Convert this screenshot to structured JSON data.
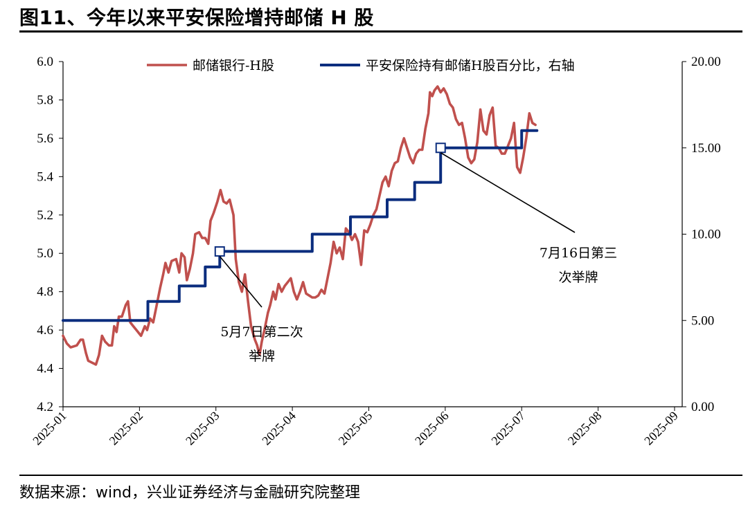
{
  "page": {
    "title": "图11、今年以来平安保险增持邮储 H 股",
    "source": "数据来源：wind，兴业证券经济与金融研究院整理"
  },
  "chart_data": {
    "type": "line",
    "title": "",
    "x": [
      "2025-01",
      "2025-02",
      "2025-03",
      "2025-04",
      "2025-05",
      "2025-06",
      "2025-07",
      "2025-08",
      "2025-09"
    ],
    "xlabel": "",
    "ylabel": "",
    "ylim": [
      4.2,
      6.0
    ],
    "yticks": [
      "4.2",
      "4.4",
      "4.6",
      "4.8",
      "5.0",
      "5.2",
      "5.4",
      "5.6",
      "5.8",
      "6.0"
    ],
    "y2lim": [
      0,
      20
    ],
    "y2ticks": [
      "0.00",
      "5.00",
      "10.00",
      "15.00",
      "20.00"
    ],
    "legend_position": "top",
    "series": [
      {
        "name": "邮储银行-H股",
        "axis": "left",
        "color": "#C0504D",
        "points": [
          [
            0.0,
            4.57
          ],
          [
            0.05,
            4.53
          ],
          [
            0.1,
            4.51
          ],
          [
            0.18,
            4.52
          ],
          [
            0.23,
            4.55
          ],
          [
            0.26,
            4.55
          ],
          [
            0.3,
            4.48
          ],
          [
            0.33,
            4.44
          ],
          [
            0.38,
            4.43
          ],
          [
            0.43,
            4.42
          ],
          [
            0.47,
            4.47
          ],
          [
            0.51,
            4.57
          ],
          [
            0.55,
            4.54
          ],
          [
            0.6,
            4.52
          ],
          [
            0.64,
            4.52
          ],
          [
            0.67,
            4.62
          ],
          [
            0.7,
            4.59
          ],
          [
            0.73,
            4.67
          ],
          [
            0.77,
            4.67
          ],
          [
            0.82,
            4.73
          ],
          [
            0.85,
            4.75
          ],
          [
            0.88,
            4.64
          ],
          [
            0.92,
            4.62
          ],
          [
            0.96,
            4.6
          ],
          [
            1.02,
            4.57
          ],
          [
            1.07,
            4.62
          ],
          [
            1.1,
            4.6
          ],
          [
            1.14,
            4.66
          ],
          [
            1.18,
            4.64
          ],
          [
            1.22,
            4.72
          ],
          [
            1.27,
            4.82
          ],
          [
            1.31,
            4.89
          ],
          [
            1.34,
            4.95
          ],
          [
            1.38,
            4.9
          ],
          [
            1.42,
            4.96
          ],
          [
            1.48,
            4.97
          ],
          [
            1.52,
            4.9
          ],
          [
            1.55,
            5.0
          ],
          [
            1.59,
            4.98
          ],
          [
            1.62,
            4.86
          ],
          [
            1.66,
            4.92
          ],
          [
            1.7,
            5.0
          ],
          [
            1.73,
            5.1
          ],
          [
            1.78,
            5.11
          ],
          [
            1.82,
            5.08
          ],
          [
            1.86,
            5.08
          ],
          [
            1.9,
            5.05
          ],
          [
            1.93,
            5.17
          ],
          [
            1.97,
            5.21
          ],
          [
            2.02,
            5.27
          ],
          [
            2.06,
            5.33
          ],
          [
            2.1,
            5.27
          ],
          [
            2.14,
            5.26
          ],
          [
            2.18,
            5.28
          ],
          [
            2.23,
            5.2
          ],
          [
            2.26,
            4.97
          ],
          [
            2.3,
            4.85
          ],
          [
            2.34,
            4.8
          ],
          [
            2.38,
            4.89
          ],
          [
            2.42,
            4.75
          ],
          [
            2.46,
            4.62
          ],
          [
            2.51,
            4.55
          ],
          [
            2.54,
            4.52
          ],
          [
            2.57,
            4.47
          ],
          [
            2.6,
            4.54
          ],
          [
            2.64,
            4.61
          ],
          [
            2.68,
            4.69
          ],
          [
            2.71,
            4.73
          ],
          [
            2.75,
            4.8
          ],
          [
            2.78,
            4.76
          ],
          [
            2.82,
            4.84
          ],
          [
            2.86,
            4.8
          ],
          [
            2.9,
            4.83
          ],
          [
            2.94,
            4.85
          ],
          [
            2.98,
            4.87
          ],
          [
            3.02,
            4.8
          ],
          [
            3.06,
            4.76
          ],
          [
            3.1,
            4.8
          ],
          [
            3.14,
            4.85
          ],
          [
            3.18,
            4.79
          ],
          [
            3.22,
            4.78
          ],
          [
            3.26,
            4.77
          ],
          [
            3.3,
            4.77
          ],
          [
            3.34,
            4.78
          ],
          [
            3.38,
            4.81
          ],
          [
            3.42,
            4.79
          ],
          [
            3.46,
            4.87
          ],
          [
            3.5,
            4.95
          ],
          [
            3.54,
            5.06
          ],
          [
            3.58,
            5.0
          ],
          [
            3.62,
            5.03
          ],
          [
            3.66,
            4.97
          ],
          [
            3.7,
            5.13
          ],
          [
            3.74,
            5.11
          ],
          [
            3.78,
            5.07
          ],
          [
            3.82,
            5.1
          ],
          [
            3.86,
            5.06
          ],
          [
            3.9,
            4.94
          ],
          [
            3.94,
            5.12
          ],
          [
            3.98,
            5.11
          ],
          [
            4.02,
            5.15
          ],
          [
            4.06,
            5.2
          ],
          [
            4.1,
            5.23
          ],
          [
            4.14,
            5.3
          ],
          [
            4.18,
            5.37
          ],
          [
            4.22,
            5.4
          ],
          [
            4.26,
            5.35
          ],
          [
            4.3,
            5.43
          ],
          [
            4.34,
            5.47
          ],
          [
            4.38,
            5.48
          ],
          [
            4.42,
            5.55
          ],
          [
            4.46,
            5.6
          ],
          [
            4.5,
            5.55
          ],
          [
            4.54,
            5.5
          ],
          [
            4.58,
            5.47
          ],
          [
            4.62,
            5.52
          ],
          [
            4.66,
            5.54
          ],
          [
            4.7,
            5.54
          ],
          [
            4.74,
            5.65
          ],
          [
            4.78,
            5.73
          ],
          [
            4.8,
            5.84
          ],
          [
            4.83,
            5.82
          ],
          [
            4.86,
            5.85
          ],
          [
            4.9,
            5.87
          ],
          [
            4.94,
            5.84
          ],
          [
            4.98,
            5.86
          ],
          [
            5.02,
            5.83
          ],
          [
            5.06,
            5.78
          ],
          [
            5.1,
            5.76
          ],
          [
            5.14,
            5.7
          ],
          [
            5.18,
            5.67
          ],
          [
            5.22,
            5.68
          ],
          [
            5.26,
            5.6
          ],
          [
            5.3,
            5.5
          ],
          [
            5.34,
            5.47
          ],
          [
            5.38,
            5.49
          ],
          [
            5.42,
            5.58
          ],
          [
            5.46,
            5.75
          ],
          [
            5.5,
            5.64
          ],
          [
            5.54,
            5.62
          ],
          [
            5.58,
            5.72
          ],
          [
            5.62,
            5.76
          ],
          [
            5.66,
            5.56
          ],
          [
            5.7,
            5.55
          ],
          [
            5.74,
            5.52
          ],
          [
            5.78,
            5.52
          ],
          [
            5.82,
            5.56
          ],
          [
            5.86,
            5.6
          ],
          [
            5.9,
            5.68
          ],
          [
            5.94,
            5.45
          ],
          [
            5.98,
            5.42
          ],
          [
            6.02,
            5.5
          ],
          [
            6.06,
            5.6
          ],
          [
            6.1,
            5.73
          ],
          [
            6.14,
            5.68
          ],
          [
            6.18,
            5.67
          ]
        ]
      },
      {
        "name": "平安保险持有邮储H股百分比，右轴",
        "axis": "right",
        "color": "#0B2D7E",
        "points": [
          [
            0.0,
            5.0
          ],
          [
            1.11,
            5.0
          ],
          [
            1.11,
            6.1
          ],
          [
            1.52,
            6.1
          ],
          [
            1.52,
            7.0
          ],
          [
            1.86,
            7.0
          ],
          [
            1.86,
            8.1
          ],
          [
            2.05,
            8.1
          ],
          [
            2.05,
            9.0
          ],
          [
            3.26,
            9.0
          ],
          [
            3.26,
            10.0
          ],
          [
            3.76,
            10.0
          ],
          [
            3.76,
            11.0
          ],
          [
            4.24,
            11.0
          ],
          [
            4.24,
            12.0
          ],
          [
            4.6,
            12.0
          ],
          [
            4.6,
            13.0
          ],
          [
            4.94,
            13.0
          ],
          [
            4.94,
            15.0
          ],
          [
            6.0,
            15.0
          ],
          [
            6.0,
            16.0
          ],
          [
            6.2,
            16.0
          ]
        ],
        "markers": [
          [
            2.05,
            9.0
          ],
          [
            4.94,
            15.0
          ]
        ]
      }
    ],
    "annotations": [
      {
        "lines": [
          "5月7日第二次",
          "举牌"
        ],
        "marker_index": 0
      },
      {
        "lines": [
          "7月16日第三",
          "次举牌"
        ],
        "marker_index": 1
      }
    ]
  }
}
